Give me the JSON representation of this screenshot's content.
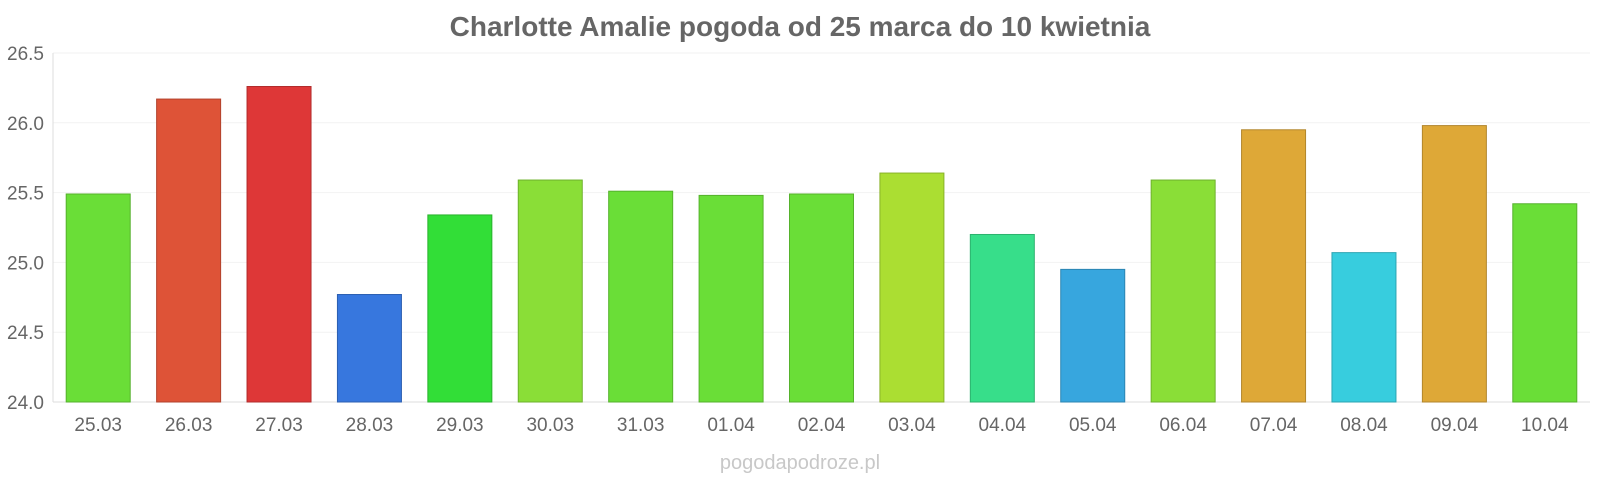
{
  "chart_data": {
    "type": "bar",
    "title": "Charlotte Amalie pogoda od 25 marca do 10 kwietnia",
    "xlabel": "",
    "ylabel": "",
    "categories": [
      "25.03",
      "26.03",
      "27.03",
      "28.03",
      "29.03",
      "30.03",
      "31.03",
      "01.04",
      "02.04",
      "03.04",
      "04.04",
      "05.04",
      "06.04",
      "07.04",
      "08.04",
      "09.04",
      "10.04"
    ],
    "values": [
      25.49,
      26.17,
      26.26,
      24.77,
      25.34,
      25.59,
      25.51,
      25.48,
      25.49,
      25.64,
      25.2,
      24.95,
      25.59,
      25.95,
      25.07,
      25.98,
      25.42
    ],
    "colors": [
      "#6ade37",
      "#de5337",
      "#de3737",
      "#3777de",
      "#32de37",
      "#8ade37",
      "#6ade37",
      "#6ade37",
      "#6ade37",
      "#abde32",
      "#37de8a",
      "#37a6de",
      "#8ade37",
      "#dea837",
      "#37cdde",
      "#dea837",
      "#6ade37"
    ],
    "ylim": [
      24.0,
      26.5
    ],
    "yticks": [
      "24.0",
      "24.5",
      "25.0",
      "25.5",
      "26.0",
      "26.5"
    ],
    "grid": true,
    "legend": "none"
  },
  "footer": {
    "credit": "pogodapodroze.pl"
  }
}
